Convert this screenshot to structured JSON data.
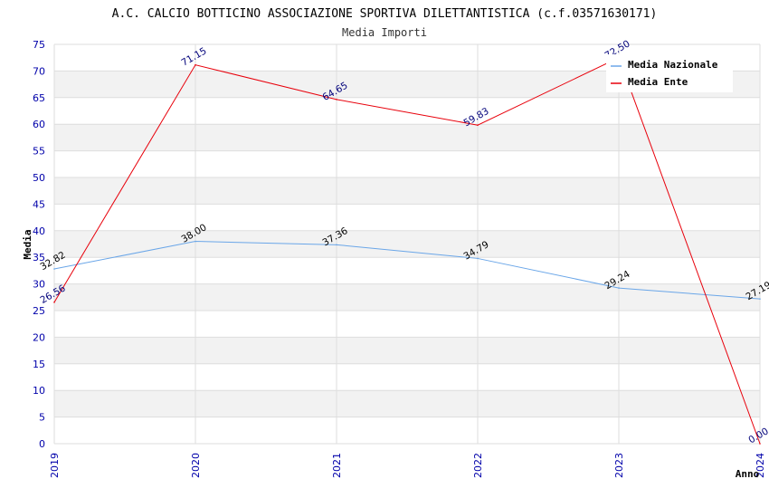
{
  "chart_data": {
    "type": "line",
    "title": "A.C. CALCIO BOTTICINO ASSOCIAZIONE SPORTIVA DILETTANTISTICA (c.f.03571630171)",
    "subtitle": "Media Importi",
    "xlabel": "Anno",
    "ylabel": "Media",
    "x": [
      "2019",
      "2020",
      "2021",
      "2022",
      "2023",
      "2024"
    ],
    "ylim": [
      0,
      75
    ],
    "yticks": [
      0,
      5,
      10,
      15,
      20,
      25,
      30,
      35,
      40,
      45,
      50,
      55,
      60,
      65,
      70,
      75
    ],
    "grid": "horizontal bands",
    "legend_position": "top-right",
    "series": [
      {
        "name": "Media Nazionale",
        "color": "#6aa6e8",
        "values": [
          32.82,
          38.0,
          37.36,
          34.79,
          29.24,
          27.19
        ],
        "labels": [
          "32.82",
          "38.00",
          "37.36",
          "34.79",
          "29.24",
          "27.19"
        ]
      },
      {
        "name": "Media Ente",
        "color": "#e8000b",
        "values": [
          26.56,
          71.15,
          64.65,
          59.83,
          72.5,
          0.0
        ],
        "labels": [
          "26.56",
          "71.15",
          "64.65",
          "59.83",
          "72.50",
          "0.00"
        ]
      }
    ]
  }
}
